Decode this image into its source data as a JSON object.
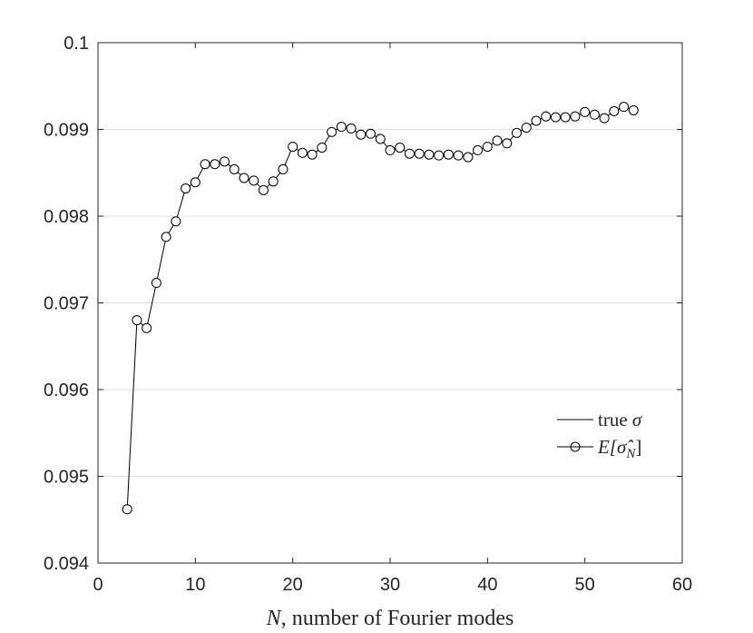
{
  "chart_data": {
    "type": "line",
    "xlabel": {
      "math": "N",
      "text": ", number of Fourier modes"
    },
    "ylabel": "",
    "xlim": [
      0,
      60
    ],
    "ylim": [
      0.094,
      0.1
    ],
    "x_ticks": [
      0,
      10,
      20,
      30,
      40,
      50,
      60
    ],
    "y_ticks": [
      0.094,
      0.095,
      0.096,
      0.097,
      0.098,
      0.099,
      0.1
    ],
    "x_tick_labels": [
      "0",
      "10",
      "20",
      "30",
      "40",
      "50",
      "60"
    ],
    "y_tick_labels": [
      "0.094",
      "0.095",
      "0.096",
      "0.097",
      "0.098",
      "0.099",
      "0.1"
    ],
    "grid": "horizontal",
    "legend_position": "right",
    "series": [
      {
        "name": "true σ",
        "legend_text": "true ",
        "legend_math": "σ",
        "style": "solid line",
        "color": "#000000",
        "x": [
          3,
          55
        ],
        "y": [
          0.1,
          0.1
        ]
      },
      {
        "name": "E[σ̂_N]",
        "legend_math": "E[σ̂",
        "legend_sub": "N",
        "legend_close": "]",
        "style": "line with open circle markers",
        "color": "#000000",
        "x": [
          3,
          4,
          5,
          6,
          7,
          8,
          9,
          10,
          11,
          12,
          13,
          14,
          15,
          16,
          17,
          18,
          19,
          20,
          21,
          22,
          23,
          24,
          25,
          26,
          27,
          28,
          29,
          30,
          31,
          32,
          33,
          34,
          35,
          36,
          37,
          38,
          39,
          40,
          41,
          42,
          43,
          44,
          45,
          46,
          47,
          48,
          49,
          50,
          51,
          52,
          53,
          54,
          55
        ],
        "y": [
          0.09462,
          0.0968,
          0.09671,
          0.09723,
          0.09776,
          0.09794,
          0.09832,
          0.09839,
          0.0986,
          0.0986,
          0.09863,
          0.09854,
          0.09844,
          0.09841,
          0.0983,
          0.0984,
          0.09854,
          0.0988,
          0.09873,
          0.09871,
          0.09879,
          0.09897,
          0.09903,
          0.09901,
          0.09894,
          0.09895,
          0.09889,
          0.09876,
          0.09879,
          0.09872,
          0.09872,
          0.09871,
          0.0987,
          0.09871,
          0.0987,
          0.09868,
          0.09876,
          0.0988,
          0.09887,
          0.09884,
          0.09896,
          0.09902,
          0.0991,
          0.09915,
          0.09914,
          0.09914,
          0.09915,
          0.0992,
          0.09917,
          0.09913,
          0.09921,
          0.09926,
          0.09922
        ]
      }
    ]
  }
}
